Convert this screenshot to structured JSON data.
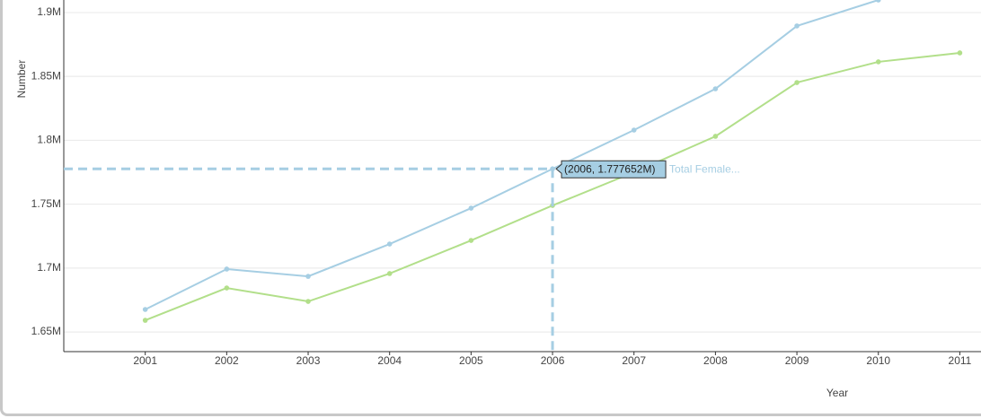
{
  "chart_data": {
    "type": "line",
    "x_label": "Year",
    "y_label": "Number",
    "x": [
      2001,
      2002,
      2003,
      2004,
      2005,
      2006,
      2007,
      2008,
      2009,
      2010,
      2011
    ],
    "series": [
      {
        "name": "Total Female...",
        "color": "#a6cee3",
        "values": [
          1667600,
          1699200,
          1693500,
          1718800,
          1746900,
          1777652,
          1808000,
          1840300,
          1889500,
          1909800,
          null
        ]
      },
      {
        "color": "#b2df8a",
        "values": [
          1659100,
          1684400,
          1673900,
          1695700,
          1721600,
          1749000,
          1775000,
          1803100,
          1845200,
          1861400,
          1868400
        ]
      }
    ],
    "xlim": [
      2000,
      2011.26
    ],
    "ylim": [
      1634600,
      1909800
    ],
    "xticks": [
      2001,
      2002,
      2003,
      2004,
      2005,
      2006,
      2007,
      2008,
      2009,
      2010,
      2011
    ],
    "yticks": [
      {
        "value": 1650000,
        "label": "1.65M"
      },
      {
        "value": 1700000,
        "label": "1.7M"
      },
      {
        "value": 1750000,
        "label": "1.75M"
      },
      {
        "value": 1800000,
        "label": "1.8M"
      },
      {
        "value": 1850000,
        "label": "1.85M"
      },
      {
        "value": 1900000,
        "label": "1.9M"
      }
    ],
    "grid": true,
    "tooltip": "(2006, 1.777652M)"
  }
}
